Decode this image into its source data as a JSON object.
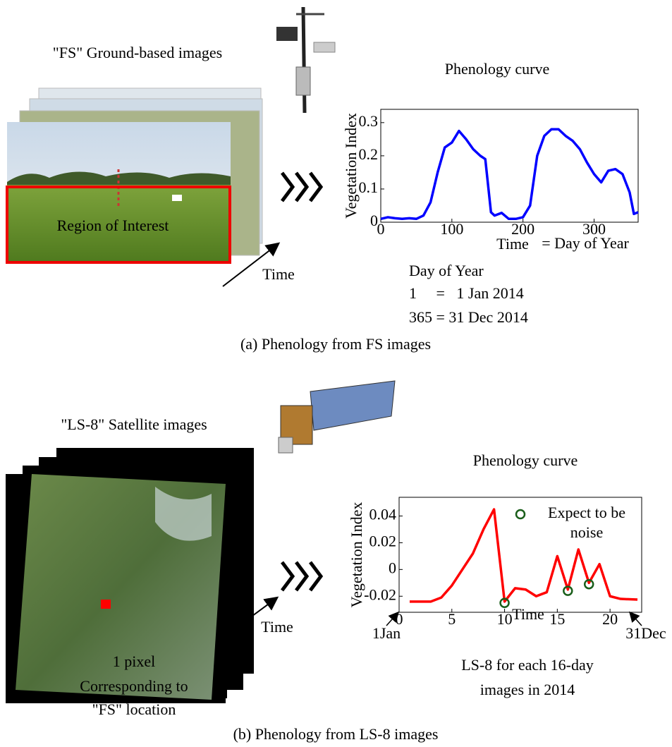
{
  "figure": {
    "panel_a": {
      "image_label": "\"FS\" Ground-based images",
      "roi_label": "Region of Interest",
      "time_label": "Time",
      "day_of_year": [
        "Day of Year",
        "1     =   1 Jan 2014",
        "365 = 31 Dec 2014"
      ],
      "caption": "(a) Phenology from FS images"
    },
    "panel_b": {
      "image_label": "\"LS-8\" Satellite images",
      "time_label": "Time",
      "pixel_note": [
        "1 pixel",
        "Corresponding to",
        "\"FS\" location"
      ],
      "caption": "(b) Phenology from LS-8 images"
    }
  },
  "chart_data": [
    {
      "type": "line",
      "title": "Phenology curve",
      "x_label": "Time",
      "y_label": "Vegetation Index",
      "annotations": [
        "= Day of Year"
      ],
      "xlim": [
        0,
        362
      ],
      "ylim": [
        0,
        0.34
      ],
      "xticks": [
        0,
        100,
        200,
        300
      ],
      "yticks": [
        0,
        0.1,
        0.2,
        0.3
      ],
      "series": [
        {
          "color": "#0000ff",
          "x": [
            0,
            10,
            20,
            30,
            40,
            50,
            60,
            70,
            80,
            90,
            100,
            110,
            120,
            130,
            140,
            147,
            155,
            160,
            170,
            180,
            190,
            200,
            210,
            220,
            230,
            240,
            250,
            260,
            270,
            280,
            290,
            300,
            310,
            320,
            330,
            340,
            350,
            356,
            362
          ],
          "values": [
            0.01,
            0.015,
            0.012,
            0.01,
            0.012,
            0.01,
            0.02,
            0.06,
            0.15,
            0.225,
            0.24,
            0.275,
            0.25,
            0.22,
            0.2,
            0.19,
            0.03,
            0.02,
            0.028,
            0.01,
            0.01,
            0.015,
            0.05,
            0.2,
            0.26,
            0.28,
            0.28,
            0.26,
            0.245,
            0.22,
            0.18,
            0.145,
            0.12,
            0.155,
            0.16,
            0.145,
            0.09,
            0.025,
            0.03
          ]
        }
      ]
    },
    {
      "type": "line",
      "title": "Phenology curve",
      "x_label": "Time",
      "y_label": "Vegetation Index",
      "annotations": [
        "1Jan",
        "31Dec",
        "LS-8 for each 16-day",
        "images in 2014"
      ],
      "xlim": [
        0,
        23
      ],
      "ylim": [
        -0.032,
        0.054
      ],
      "xticks": [
        0,
        5,
        10,
        15,
        20
      ],
      "yticks": [
        -0.02,
        0,
        0.02,
        0.04
      ],
      "legend": "upper right",
      "series": [
        {
          "color": "#ff0000",
          "style": "line",
          "x": [
            1,
            2,
            3,
            4,
            5,
            6,
            7,
            8,
            9,
            10,
            11,
            12,
            13,
            14,
            15,
            16,
            17,
            18,
            19,
            20,
            21,
            22.6
          ],
          "values": [
            -0.024,
            -0.024,
            -0.024,
            -0.021,
            -0.012,
            0,
            0.012,
            0.03,
            0.045,
            -0.024,
            -0.014,
            -0.015,
            -0.02,
            -0.017,
            0.01,
            -0.015,
            0.015,
            -0.01,
            0.004,
            -0.02,
            -0.022,
            -0.0225
          ]
        },
        {
          "name": "Expect to be noise",
          "color": "#1a5e1a",
          "style": "markers",
          "x": [
            10,
            16,
            18
          ],
          "values": [
            -0.025,
            -0.016,
            -0.011
          ]
        }
      ]
    }
  ]
}
